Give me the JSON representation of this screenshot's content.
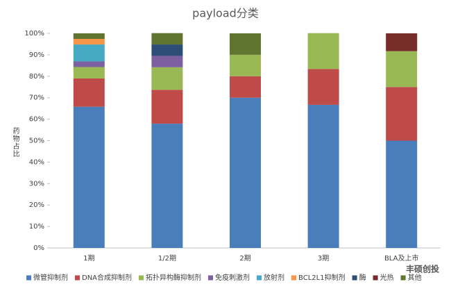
{
  "chart_data": {
    "type": "stacked_bar",
    "title": "payload分类",
    "y_label": "药物占比",
    "categories": [
      "1期",
      "1/2期",
      "2期",
      "3期",
      "BLA及上市"
    ],
    "series": [
      {
        "name": "微管抑制剂",
        "color": "#4a7ebb",
        "values": [
          65.8,
          57.9,
          70,
          66.7,
          50
        ]
      },
      {
        "name": "DNA合成抑制剂",
        "color": "#be4b48",
        "values": [
          13.2,
          15.8,
          10,
          16.7,
          25
        ]
      },
      {
        "name": "拓扑异构酶抑制剂",
        "color": "#98b954",
        "values": [
          5.3,
          10.5,
          10,
          16.7,
          16.7
        ]
      },
      {
        "name": "免疫刺激剂",
        "color": "#7d60a0",
        "values": [
          2.6,
          5.3,
          0,
          0,
          0
        ]
      },
      {
        "name": "放射剂",
        "color": "#46aac5",
        "values": [
          7.9,
          0,
          0,
          0,
          0
        ]
      },
      {
        "name": "BCL2L1抑制剂",
        "color": "#f79646",
        "values": [
          2.6,
          0,
          0,
          0,
          0
        ]
      },
      {
        "name": "酶",
        "color": "#2c4d75",
        "values": [
          0,
          5.3,
          0,
          0,
          0
        ]
      },
      {
        "name": "光热",
        "color": "#772c2a",
        "values": [
          0,
          0,
          0,
          0,
          8.3
        ]
      },
      {
        "name": "其他",
        "color": "#5f7530",
        "values": [
          2.6,
          5.3,
          10,
          0,
          0
        ]
      }
    ],
    "ylim": [
      0,
      100
    ],
    "yticks": [
      {
        "value": 0,
        "label": "0%"
      },
      {
        "value": 10,
        "label": "10%"
      },
      {
        "value": 20,
        "label": "20%"
      },
      {
        "value": 30,
        "label": "30%"
      },
      {
        "value": 40,
        "label": "40%"
      },
      {
        "value": 50,
        "label": "50%"
      },
      {
        "value": 60,
        "label": "60%"
      },
      {
        "value": 70,
        "label": "70%"
      },
      {
        "value": 80,
        "label": "80%"
      },
      {
        "value": 90,
        "label": "90%"
      },
      {
        "value": 100,
        "label": "100%"
      }
    ],
    "grid": false,
    "legend": "bottom",
    "watermark": "丰硕创投"
  }
}
